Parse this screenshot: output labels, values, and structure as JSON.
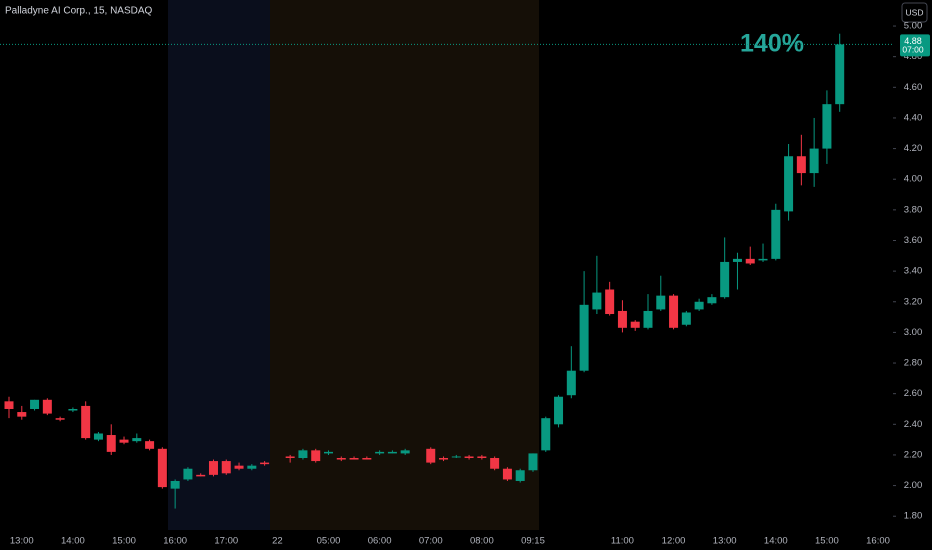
{
  "chart_data": {
    "type": "candlestick",
    "title": "Palladyne AI Corp., 15, NASDAQ",
    "currency": "USD",
    "annotation": "140%",
    "last_price": 4.88,
    "countdown": "07:00",
    "up_color": "#089981",
    "down_color": "#f23645",
    "categories": [
      null,
      "13:00",
      null,
      null,
      null,
      "14:00",
      null,
      null,
      null,
      "15:00",
      null,
      null,
      null,
      "16:00",
      null,
      null,
      null,
      "17:00",
      null,
      null,
      null,
      "22",
      null,
      null,
      null,
      "05:00",
      null,
      null,
      null,
      "06:00",
      null,
      null,
      null,
      "07:00",
      null,
      null,
      null,
      "08:00",
      null,
      null,
      null,
      "09:15",
      null,
      null,
      null,
      null,
      null,
      null,
      "11:00",
      null,
      null,
      null,
      "12:00",
      null,
      null,
      null,
      "13:00",
      null,
      null,
      null,
      "14:00",
      null,
      null,
      null,
      "15:00",
      null,
      null,
      null,
      "16:00"
    ],
    "open": [
      2.55,
      2.48,
      2.5,
      2.56,
      2.44,
      2.49,
      2.52,
      2.3,
      2.33,
      2.3,
      2.29,
      2.29,
      2.24,
      1.98,
      2.04,
      2.07,
      2.16,
      2.16,
      2.13,
      2.11,
      2.15,
      null,
      2.19,
      2.18,
      2.23,
      2.21,
      2.18,
      2.18,
      2.18,
      2.21,
      2.21,
      2.21,
      null,
      2.24,
      2.18,
      2.19,
      2.19,
      2.19,
      2.18,
      2.11,
      2.03,
      2.1,
      2.23,
      2.4,
      2.59,
      2.75,
      3.15,
      3.28,
      3.14,
      3.07,
      3.03,
      3.15,
      3.24,
      3.05,
      3.15,
      3.19,
      3.23,
      3.46,
      3.48,
      3.47,
      3.48,
      3.79,
      4.15,
      4.04,
      4.2,
      4.49,
      null,
      null,
      null
    ],
    "high": [
      2.58,
      2.52,
      2.56,
      2.57,
      2.45,
      2.51,
      2.55,
      2.35,
      2.4,
      2.32,
      2.34,
      2.3,
      2.25,
      2.04,
      2.12,
      2.08,
      2.17,
      2.17,
      2.15,
      2.14,
      2.16,
      null,
      2.2,
      2.24,
      2.24,
      2.23,
      2.19,
      2.19,
      2.19,
      2.23,
      2.23,
      2.24,
      null,
      2.25,
      2.19,
      2.2,
      2.2,
      2.2,
      2.19,
      2.12,
      2.11,
      2.21,
      2.45,
      2.59,
      2.91,
      3.4,
      3.5,
      3.33,
      3.21,
      3.08,
      3.25,
      3.37,
      3.25,
      3.14,
      3.22,
      3.25,
      3.62,
      3.52,
      3.56,
      3.58,
      3.84,
      4.23,
      4.29,
      4.4,
      4.58,
      4.95,
      null,
      null,
      null
    ],
    "low": [
      2.44,
      2.43,
      2.49,
      2.46,
      2.42,
      2.48,
      2.3,
      2.29,
      2.2,
      2.27,
      2.28,
      2.23,
      1.98,
      1.85,
      2.03,
      2.06,
      2.06,
      2.07,
      2.1,
      2.1,
      2.13,
      null,
      2.15,
      2.17,
      2.15,
      2.2,
      2.16,
      2.17,
      2.17,
      2.2,
      2.21,
      2.2,
      null,
      2.14,
      2.16,
      2.18,
      2.17,
      2.17,
      2.1,
      2.03,
      2.02,
      2.09,
      2.22,
      2.38,
      2.57,
      2.74,
      3.12,
      3.11,
      3.0,
      3.01,
      3.02,
      3.14,
      3.02,
      3.04,
      3.14,
      3.18,
      3.22,
      3.28,
      3.44,
      3.46,
      3.47,
      3.73,
      3.96,
      3.95,
      4.1,
      4.44,
      null,
      null,
      null
    ],
    "close": [
      2.5,
      2.45,
      2.56,
      2.47,
      2.43,
      2.5,
      2.31,
      2.34,
      2.22,
      2.28,
      2.31,
      2.24,
      1.99,
      2.03,
      2.11,
      2.06,
      2.07,
      2.08,
      2.11,
      2.13,
      2.14,
      null,
      2.18,
      2.23,
      2.16,
      2.22,
      2.17,
      2.17,
      2.17,
      2.22,
      2.22,
      2.23,
      null,
      2.15,
      2.17,
      2.19,
      2.18,
      2.18,
      2.11,
      2.04,
      2.1,
      2.21,
      2.44,
      2.58,
      2.75,
      3.18,
      3.26,
      3.12,
      3.03,
      3.03,
      3.14,
      3.24,
      3.03,
      3.13,
      3.2,
      3.23,
      3.46,
      3.48,
      3.45,
      3.48,
      3.8,
      4.15,
      4.04,
      4.2,
      4.49,
      4.88,
      null,
      null,
      null
    ],
    "ylim": [
      1.71,
      5.17
    ],
    "yticks": [
      {
        "value": 1.8,
        "label": "1.80"
      },
      {
        "value": 2.0,
        "label": "2.00"
      },
      {
        "value": 2.2,
        "label": "2.20"
      },
      {
        "value": 2.4,
        "label": "2.40"
      },
      {
        "value": 2.6,
        "label": "2.60"
      },
      {
        "value": 2.8,
        "label": "2.80"
      },
      {
        "value": 3.0,
        "label": "3.00"
      },
      {
        "value": 3.2,
        "label": "3.20"
      },
      {
        "value": 3.4,
        "label": "3.40"
      },
      {
        "value": 3.6,
        "label": "3.60"
      },
      {
        "value": 3.8,
        "label": "3.80"
      },
      {
        "value": 4.0,
        "label": "4.00"
      },
      {
        "value": 4.2,
        "label": "4.20"
      },
      {
        "value": 4.4,
        "label": "4.40"
      },
      {
        "value": 4.6,
        "label": "4.60"
      },
      {
        "value": 4.8,
        "label": "4.80"
      },
      {
        "value": 5.0,
        "label": "5.00"
      }
    ]
  }
}
